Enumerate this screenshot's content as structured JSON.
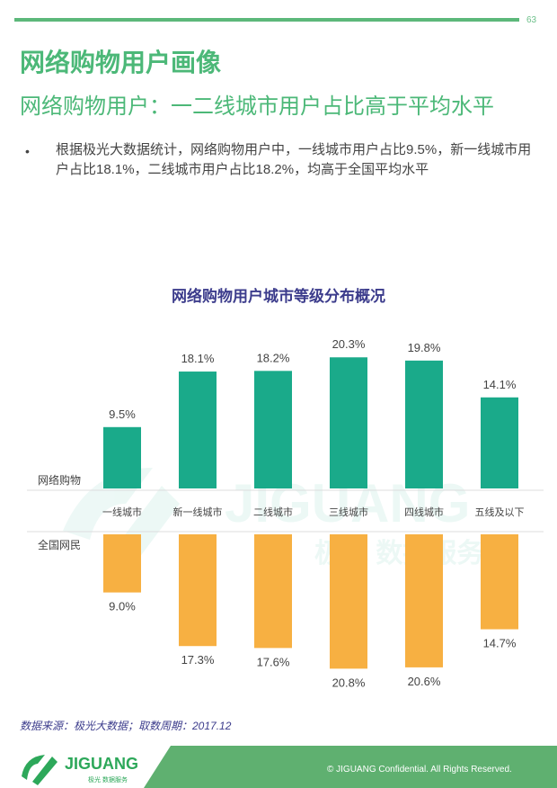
{
  "page_number": "63",
  "title": "网络购物用户画像",
  "subtitle": "网络购物用户：一二线城市用户占比高于平均水平",
  "bullet_text": "根据极光大数据统计，网络购物用户中，一线城市用户占比9.5%，新一线城市用户占比18.1%，二线城市用户占比18.2%，均高于全国平均水平",
  "source": "数据来源：极光大数据；取数周期：2017.12",
  "copyright": "© JIGUANG Confidential. All Rights Reserved.",
  "logo": {
    "name": "JIGUANG",
    "sub": "极光 数据服务"
  },
  "watermark": {
    "name": "JIGUANG",
    "sub": "极光 数据服务"
  },
  "colors": {
    "green": "#4cb878",
    "teal": "#1aaa8a",
    "orange": "#f7b042",
    "title_blue": "#3c3c8c"
  },
  "chart_data": {
    "type": "bar",
    "title": "网络购物用户城市等级分布概况",
    "categories": [
      "一线城市",
      "新一线城市",
      "二线城市",
      "三线城市",
      "四线城市",
      "五线及以下"
    ],
    "series": [
      {
        "name": "网络购物",
        "values": [
          9.5,
          18.1,
          18.2,
          20.3,
          19.8,
          14.1
        ],
        "labels": [
          "9.5%",
          "18.1%",
          "18.2%",
          "20.3%",
          "19.8%",
          "14.1%"
        ]
      },
      {
        "name": "全国网民",
        "values": [
          9.0,
          17.3,
          17.6,
          20.8,
          20.6,
          14.7
        ],
        "labels": [
          "9.0%",
          "17.3%",
          "17.6%",
          "20.8%",
          "20.6%",
          "14.7%"
        ]
      }
    ],
    "unit": "%"
  }
}
